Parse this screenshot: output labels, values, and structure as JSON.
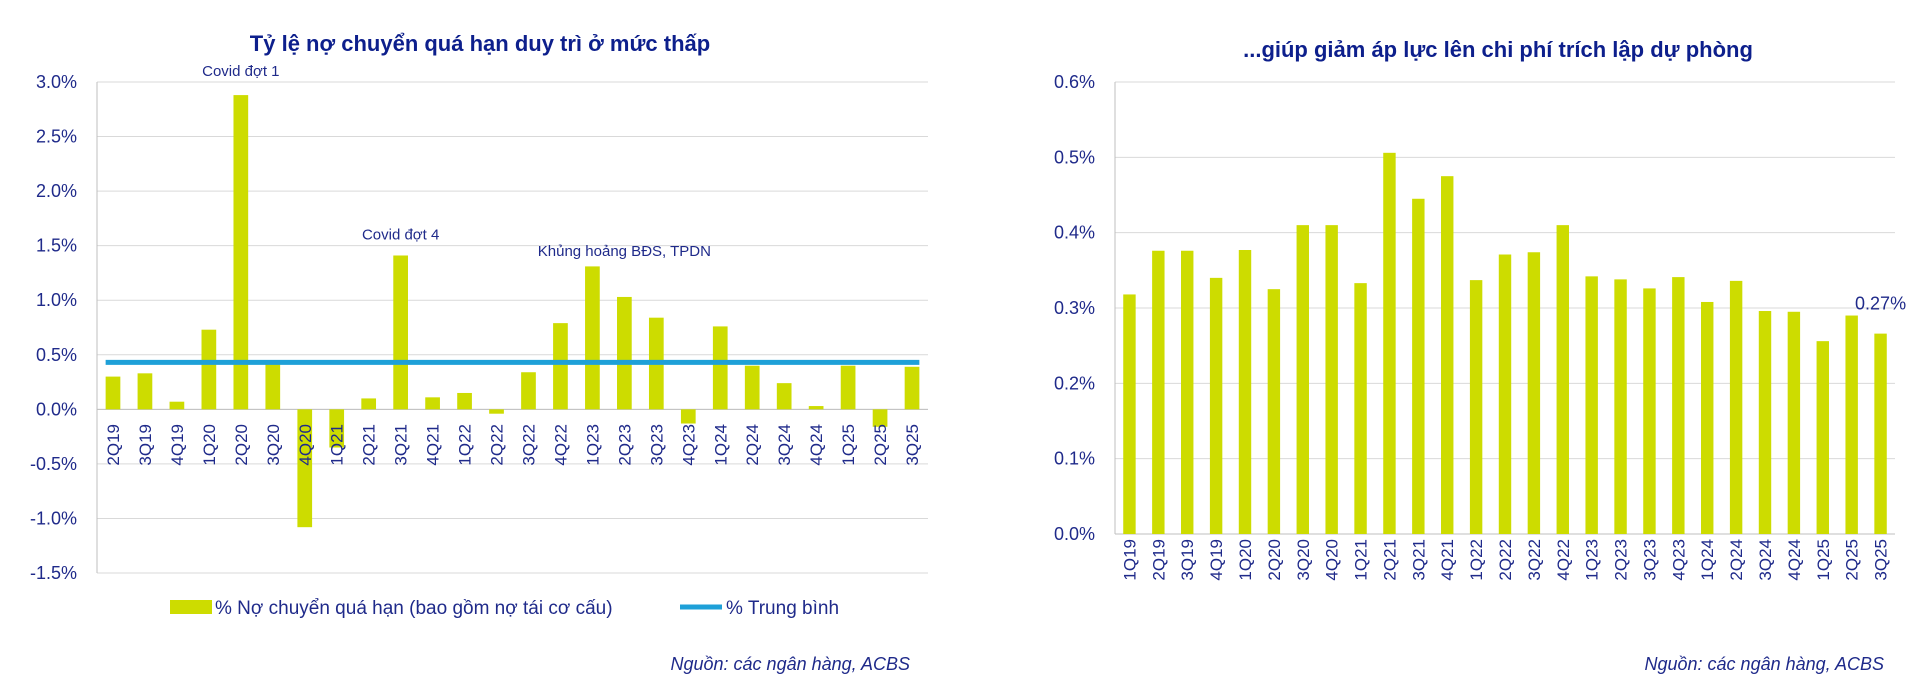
{
  "chart_data": [
    {
      "type": "bar",
      "title": "Tỷ lệ nợ chuyển quá hạn duy trì ở mức thấp",
      "categories": [
        "2Q19",
        "3Q19",
        "4Q19",
        "1Q20",
        "2Q20",
        "3Q20",
        "4Q20",
        "1Q21",
        "2Q21",
        "3Q21",
        "4Q21",
        "1Q22",
        "2Q22",
        "3Q22",
        "4Q22",
        "1Q23",
        "2Q23",
        "3Q23",
        "4Q23",
        "1Q24",
        "2Q24",
        "3Q24",
        "4Q24",
        "1Q25",
        "2Q25",
        "3Q25"
      ],
      "series": [
        {
          "name": "% Nợ chuyển quá hạn (bao gồm nợ tái cơ cấu)",
          "type": "bar",
          "color": "#cddc00",
          "values": [
            0.3,
            0.33,
            0.07,
            0.73,
            2.88,
            0.42,
            -1.08,
            -0.35,
            0.1,
            1.41,
            0.11,
            0.15,
            -0.04,
            0.34,
            0.79,
            1.31,
            1.03,
            0.84,
            -0.13,
            0.76,
            0.4,
            0.24,
            0.03,
            0.4,
            -0.16,
            0.39
          ]
        },
        {
          "name": "% Trung bình",
          "type": "line",
          "color": "#1ea0d8",
          "values": [
            0.43,
            0.43,
            0.43,
            0.43,
            0.43,
            0.43,
            0.43,
            0.43,
            0.43,
            0.43,
            0.43,
            0.43,
            0.43,
            0.43,
            0.43,
            0.43,
            0.43,
            0.43,
            0.43,
            0.43,
            0.43,
            0.43,
            0.43,
            0.43,
            0.43,
            0.43
          ]
        }
      ],
      "ylim": [
        -1.5,
        3.0
      ],
      "yticks": [
        "3.0%",
        "2.5%",
        "2.0%",
        "1.5%",
        "1.0%",
        "0.5%",
        "0.0%",
        "-0.5%",
        "-1.0%",
        "-1.5%"
      ],
      "ytick_values": [
        3.0,
        2.5,
        2.0,
        1.5,
        1.0,
        0.5,
        0.0,
        -0.5,
        -1.0,
        -1.5
      ],
      "annotations": [
        {
          "text": "Covid đợt 1",
          "category": "2Q20",
          "y": 3.0
        },
        {
          "text": "Covid đợt 4",
          "category": "3Q21",
          "y": 1.5
        },
        {
          "text": "Khủng hoảng BĐS, TPDN",
          "category": "2Q23",
          "y": 1.35
        }
      ],
      "legend": "bottom",
      "grid": true,
      "source": "Nguồn:  các ngân hàng, ACBS"
    },
    {
      "type": "bar",
      "title": "...giúp giảm áp lực lên chi phí trích lập dự phòng",
      "categories": [
        "1Q19",
        "2Q19",
        "3Q19",
        "4Q19",
        "1Q20",
        "2Q20",
        "3Q20",
        "4Q20",
        "1Q21",
        "2Q21",
        "3Q21",
        "4Q21",
        "1Q22",
        "2Q22",
        "3Q22",
        "4Q22",
        "1Q23",
        "2Q23",
        "3Q23",
        "4Q23",
        "1Q24",
        "2Q24",
        "3Q24",
        "4Q24",
        "1Q25",
        "2Q25",
        "3Q25"
      ],
      "series": [
        {
          "type": "bar",
          "color": "#cddc00",
          "values": [
            0.318,
            0.376,
            0.376,
            0.34,
            0.377,
            0.325,
            0.41,
            0.41,
            0.333,
            0.506,
            0.445,
            0.475,
            0.337,
            0.371,
            0.374,
            0.41,
            0.342,
            0.338,
            0.326,
            0.341,
            0.308,
            0.336,
            0.296,
            0.295,
            0.256,
            0.29,
            0.266
          ]
        }
      ],
      "ylim": [
        0.0,
        0.6
      ],
      "yticks": [
        "0.6%",
        "0.5%",
        "0.4%",
        "0.3%",
        "0.2%",
        "0.1%",
        "0.0%"
      ],
      "ytick_values": [
        0.6,
        0.5,
        0.4,
        0.3,
        0.2,
        0.1,
        0.0
      ],
      "annotations": [
        {
          "text": "0.27%",
          "category": "3Q25",
          "y": 0.29
        }
      ],
      "grid": true,
      "source": "Nguồn:  các ngân hàng, ACBS"
    }
  ],
  "colors": {
    "bar": "#cddc00",
    "avg_line": "#1ea0d8",
    "text": "#1f2a8a",
    "title": "#0d1f8c"
  }
}
